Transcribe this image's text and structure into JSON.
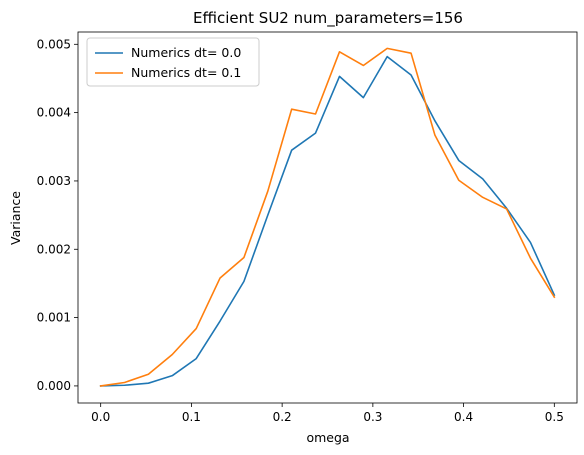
{
  "chart_data": {
    "type": "line",
    "title": "Efficient SU2 num_parameters=156",
    "xlabel": "omega",
    "ylabel": "Variance",
    "xlim": [
      -0.025,
      0.525
    ],
    "ylim": [
      -0.00025,
      0.00518
    ],
    "xticks": [
      0.0,
      0.1,
      0.2,
      0.3,
      0.4,
      0.5
    ],
    "xtick_labels": [
      "0.0",
      "0.1",
      "0.2",
      "0.3",
      "0.4",
      "0.5"
    ],
    "yticks": [
      0.0,
      0.001,
      0.002,
      0.003,
      0.004,
      0.005
    ],
    "ytick_labels": [
      "0.000",
      "0.001",
      "0.002",
      "0.003",
      "0.004",
      "0.005"
    ],
    "grid": false,
    "legend_position": "upper-left",
    "x": [
      0.0,
      0.0263,
      0.0526,
      0.0789,
      0.1053,
      0.1316,
      0.1579,
      0.1842,
      0.2105,
      0.2368,
      0.2632,
      0.2895,
      0.3158,
      0.3421,
      0.3684,
      0.3947,
      0.4211,
      0.4474,
      0.4737,
      0.5
    ],
    "series": [
      {
        "name": "Numerics dt= 0.0",
        "color": "#1f77b4",
        "values": [
          0.0,
          1e-05,
          4e-05,
          0.00015,
          0.0004,
          0.00095,
          0.00153,
          0.0025,
          0.00345,
          0.0037,
          0.00453,
          0.00422,
          0.00482,
          0.00455,
          0.00388,
          0.0033,
          0.00303,
          0.0026,
          0.0021,
          0.00133
        ]
      },
      {
        "name": "Numerics dt= 0.1",
        "color": "#ff7f0e",
        "values": [
          0.0,
          5e-05,
          0.00017,
          0.00046,
          0.00084,
          0.00158,
          0.00188,
          0.00285,
          0.00405,
          0.00398,
          0.00489,
          0.00469,
          0.00494,
          0.00487,
          0.00367,
          0.00301,
          0.00276,
          0.00259,
          0.00187,
          0.0013
        ]
      }
    ]
  }
}
